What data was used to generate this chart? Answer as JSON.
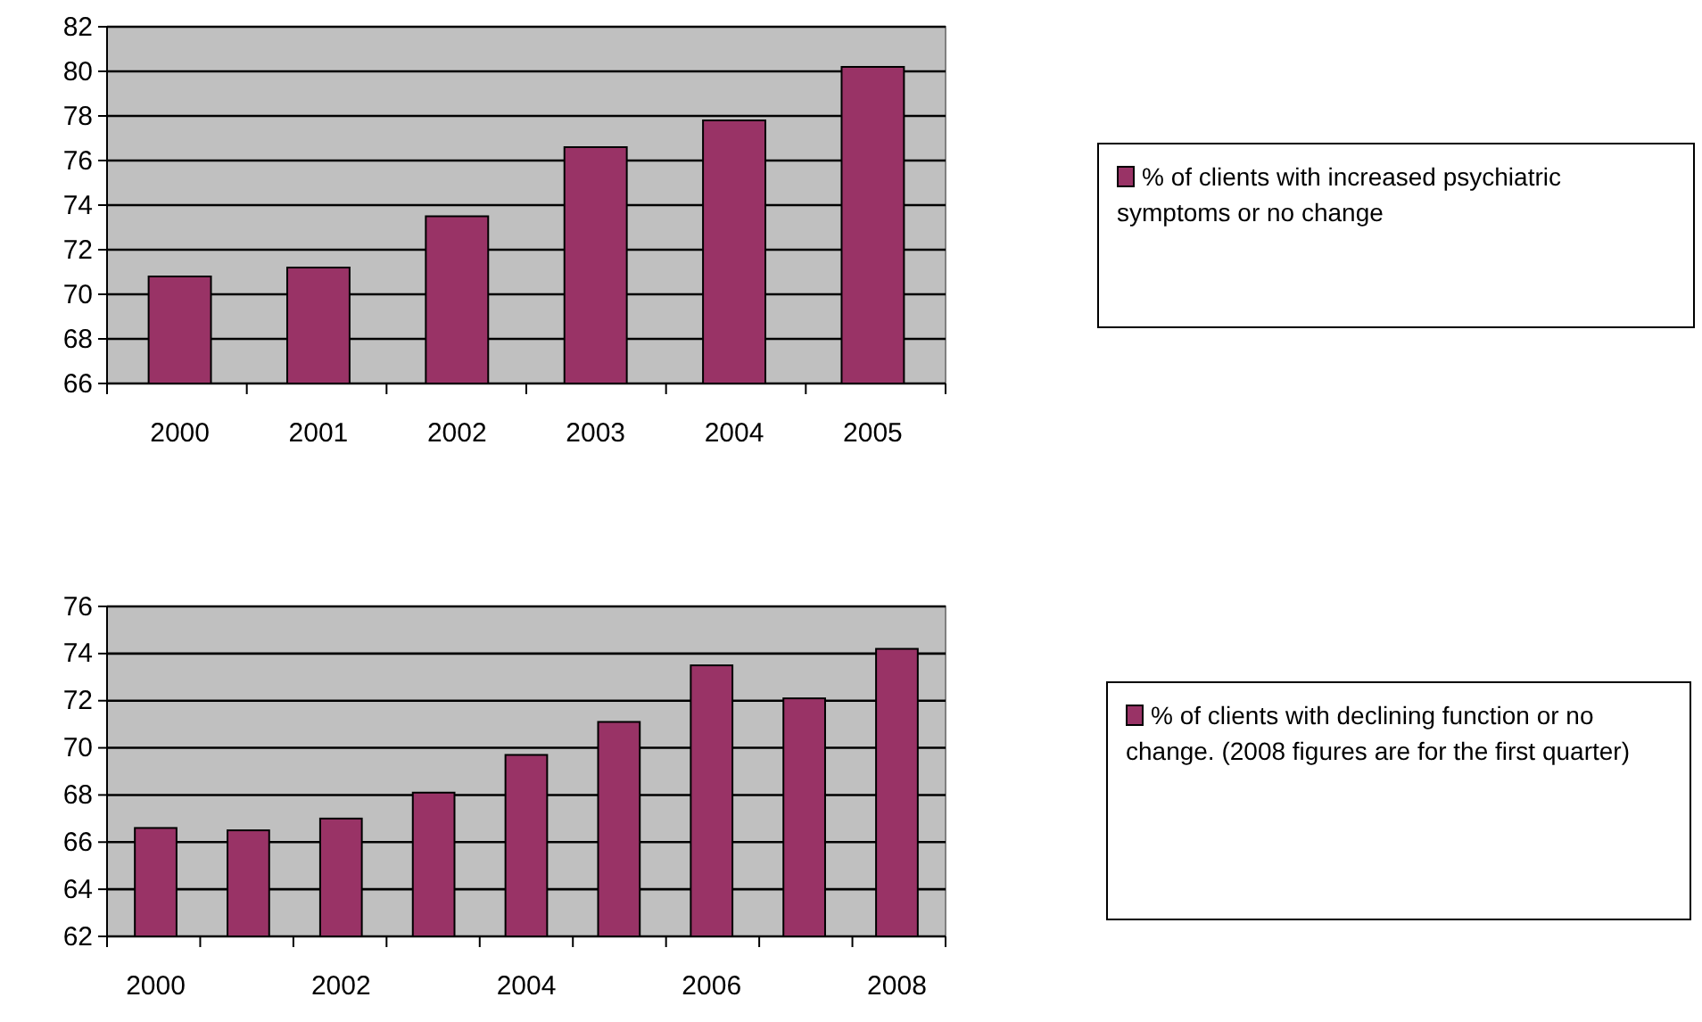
{
  "chart_data": [
    {
      "type": "bar",
      "categories": [
        "2000",
        "2001",
        "2002",
        "2003",
        "2004",
        "2005"
      ],
      "series": [
        {
          "name": "% of clients with increased psychiatric symptoms  or no change",
          "color": "#993366",
          "values": [
            70.8,
            71.2,
            73.5,
            76.6,
            77.8,
            80.2
          ]
        }
      ],
      "ylim": [
        66,
        82
      ],
      "yticks": [
        66,
        68,
        70,
        72,
        74,
        76,
        78,
        80,
        82
      ],
      "grid": "y",
      "legend": "right"
    },
    {
      "type": "bar",
      "categories": [
        "2000",
        null,
        "2002",
        null,
        "2004",
        null,
        "2006",
        null,
        "2008"
      ],
      "series": [
        {
          "name": "% of clients with declining function or no change. (2008 figures are for the first quarter)",
          "color": "#993366",
          "values": [
            66.6,
            66.5,
            67.0,
            68.1,
            69.7,
            71.1,
            73.5,
            72.1,
            74.2
          ]
        }
      ],
      "ylim": [
        62,
        76
      ],
      "yticks": [
        62,
        64,
        66,
        68,
        70,
        72,
        74,
        76
      ],
      "grid": "y",
      "legend": "right"
    }
  ]
}
